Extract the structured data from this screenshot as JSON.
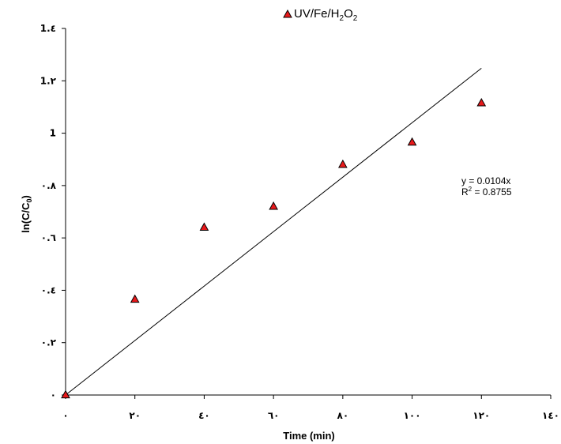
{
  "chart_data": {
    "type": "scatter",
    "xlabel": "Time (min)",
    "ylabel_main": "ln(C/C",
    "ylabel_sub": "0",
    "ylabel_end": ")",
    "xlim": [
      0,
      140
    ],
    "ylim": [
      0,
      1.4
    ],
    "x_ticks": [
      0,
      20,
      40,
      60,
      80,
      100,
      120,
      140
    ],
    "y_ticks": [
      0,
      0.2,
      0.4,
      0.6,
      0.8,
      1.0,
      1.2,
      1.4
    ],
    "x_tick_labels": [
      "٠",
      "٢٠",
      "٤٠",
      "٦٠",
      "٨٠",
      "١٠٠",
      "١٢٠",
      "١٤٠"
    ],
    "y_tick_labels": [
      "٠",
      "٠.٢",
      "٠.٤",
      "٠.٦",
      "٠.٨",
      "1",
      "1.٢",
      "1.٤"
    ],
    "grid": false,
    "legend_position": "top-center",
    "series": [
      {
        "name_parts": [
          "UV/Fe/H",
          "2",
          "O",
          "2"
        ],
        "marker": "triangle",
        "color": "#e8191b",
        "x": [
          0,
          20,
          40,
          60,
          80,
          100,
          120
        ],
        "y": [
          0.0,
          0.365,
          0.64,
          0.72,
          0.88,
          0.965,
          1.115
        ]
      }
    ],
    "trendline": {
      "slope": 0.0104,
      "x_range": [
        0,
        120
      ],
      "color": "#000000",
      "equation_text": "y = 0.0104x",
      "r2_prefix": "R",
      "r2_sup": "2",
      "r2_value": " = 0.8755"
    }
  }
}
